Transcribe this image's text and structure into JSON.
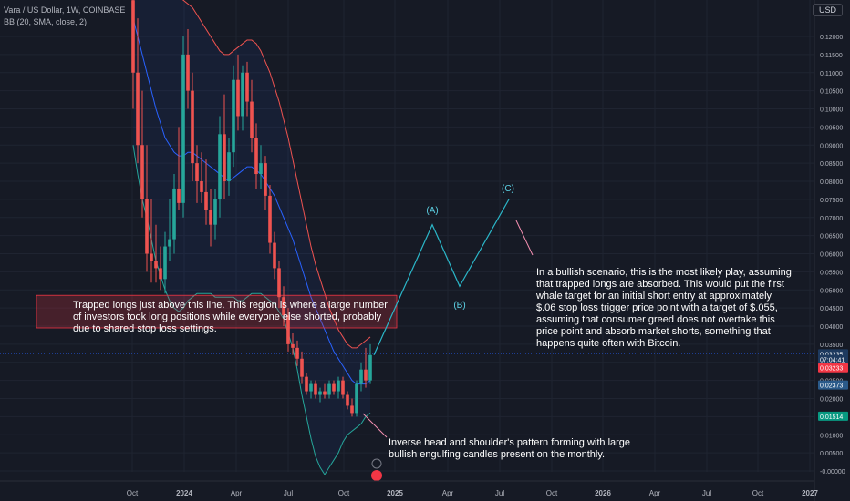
{
  "header": {
    "symbol_line": "Vara / US Dollar, 1W, COINBASE",
    "indicator_line": "BB (20, SMA, close, 2)",
    "currency": "USD"
  },
  "colors": {
    "bg": "#161a25",
    "up": "#26a69a",
    "down": "#ef5350",
    "upper_band": "#ef5350",
    "basis": "#2962ff",
    "lower_band": "#26a69a",
    "path": "#2bb7c9",
    "zone": "#f23645"
  },
  "price_badges": [
    {
      "label": "0.03235",
      "value": 0.03235,
      "color": "#1e3a5f"
    },
    {
      "label": "07:04:41",
      "value": 0.0308,
      "color": "#1e3a5f"
    },
    {
      "label": "0.03233",
      "value": 0.0285,
      "color": "#f23645"
    },
    {
      "label": "0.02373",
      "value": 0.02373,
      "color": "#2a5a8a"
    },
    {
      "label": "0.01514",
      "value": 0.01514,
      "color": "#089981"
    }
  ],
  "annotations": {
    "trapped_longs": "Trapped longs just above this line. This region is where a large number of investors took long positions while everyone else shorted, probably due to shared stop loss settings.",
    "bullish_scenario": "In a bullish scenario, this is the most likely play, assuming that trapped longs are absorbed. This would put the first whale target for an initial short entry at approximately $.06 stop loss trigger price point with a target of $.055, assuming that consumer greed does not overtake this price point and absorb market shorts, something that happens quite often with Bitcoin.",
    "inverse_hs": "Inverse head and shoulder's pattern forming with large bullish engulfing candles present on the monthly.",
    "wave_a": "(A)",
    "wave_b": "(B)",
    "wave_c": "(C)"
  },
  "chart_data": {
    "type": "candlestick",
    "title": "Vara / US Dollar, 1W, COINBASE",
    "indicator": "BB (20, SMA, close, 2)",
    "x_tick_labels": [
      "Oct",
      "2024",
      "Apr",
      "Jul",
      "Oct",
      "2025",
      "Apr",
      "Jul",
      "Oct",
      "2026",
      "Apr",
      "Jul",
      "Oct",
      "2027"
    ],
    "y_tick_labels": [
      "0.12000",
      "0.11500",
      "0.11000",
      "0.10500",
      "0.10000",
      "0.09500",
      "0.09000",
      "0.08500",
      "0.08000",
      "0.07500",
      "0.07000",
      "0.06500",
      "0.06000",
      "0.05500",
      "0.05000",
      "0.04500",
      "0.04000",
      "0.03500",
      "0.03000",
      "0.02500",
      "0.02000",
      "0.01500",
      "0.01000",
      "0.00500",
      "-0.00000"
    ],
    "ylim": [
      -0.001,
      0.13
    ],
    "candles": [
      {
        "o": 0.13,
        "h": 0.135,
        "l": 0.1,
        "c": 0.11
      },
      {
        "o": 0.11,
        "h": 0.125,
        "l": 0.085,
        "c": 0.09
      },
      {
        "o": 0.09,
        "h": 0.105,
        "l": 0.07,
        "c": 0.075
      },
      {
        "o": 0.075,
        "h": 0.09,
        "l": 0.055,
        "c": 0.06
      },
      {
        "o": 0.06,
        "h": 0.075,
        "l": 0.052,
        "c": 0.058
      },
      {
        "o": 0.058,
        "h": 0.068,
        "l": 0.052,
        "c": 0.056
      },
      {
        "o": 0.056,
        "h": 0.062,
        "l": 0.05,
        "c": 0.053
      },
      {
        "o": 0.053,
        "h": 0.066,
        "l": 0.049,
        "c": 0.062
      },
      {
        "o": 0.062,
        "h": 0.075,
        "l": 0.058,
        "c": 0.064
      },
      {
        "o": 0.064,
        "h": 0.082,
        "l": 0.06,
        "c": 0.078
      },
      {
        "o": 0.078,
        "h": 0.095,
        "l": 0.072,
        "c": 0.074
      },
      {
        "o": 0.074,
        "h": 0.12,
        "l": 0.07,
        "c": 0.115
      },
      {
        "o": 0.115,
        "h": 0.122,
        "l": 0.1,
        "c": 0.105
      },
      {
        "o": 0.105,
        "h": 0.11,
        "l": 0.08,
        "c": 0.085
      },
      {
        "o": 0.085,
        "h": 0.09,
        "l": 0.074,
        "c": 0.08
      },
      {
        "o": 0.08,
        "h": 0.088,
        "l": 0.074,
        "c": 0.077
      },
      {
        "o": 0.077,
        "h": 0.086,
        "l": 0.068,
        "c": 0.072
      },
      {
        "o": 0.072,
        "h": 0.078,
        "l": 0.062,
        "c": 0.068
      },
      {
        "o": 0.068,
        "h": 0.078,
        "l": 0.064,
        "c": 0.075
      },
      {
        "o": 0.075,
        "h": 0.098,
        "l": 0.07,
        "c": 0.093
      },
      {
        "o": 0.093,
        "h": 0.104,
        "l": 0.075,
        "c": 0.08
      },
      {
        "o": 0.08,
        "h": 0.092,
        "l": 0.076,
        "c": 0.088
      },
      {
        "o": 0.088,
        "h": 0.112,
        "l": 0.084,
        "c": 0.108
      },
      {
        "o": 0.108,
        "h": 0.115,
        "l": 0.094,
        "c": 0.098
      },
      {
        "o": 0.098,
        "h": 0.112,
        "l": 0.094,
        "c": 0.11
      },
      {
        "o": 0.11,
        "h": 0.113,
        "l": 0.098,
        "c": 0.102
      },
      {
        "o": 0.102,
        "h": 0.108,
        "l": 0.088,
        "c": 0.092
      },
      {
        "o": 0.092,
        "h": 0.096,
        "l": 0.078,
        "c": 0.082
      },
      {
        "o": 0.082,
        "h": 0.09,
        "l": 0.078,
        "c": 0.085
      },
      {
        "o": 0.085,
        "h": 0.087,
        "l": 0.072,
        "c": 0.076
      },
      {
        "o": 0.076,
        "h": 0.079,
        "l": 0.06,
        "c": 0.063
      },
      {
        "o": 0.063,
        "h": 0.066,
        "l": 0.053,
        "c": 0.056
      },
      {
        "o": 0.056,
        "h": 0.058,
        "l": 0.045,
        "c": 0.048
      },
      {
        "o": 0.048,
        "h": 0.051,
        "l": 0.04,
        "c": 0.043
      },
      {
        "o": 0.043,
        "h": 0.045,
        "l": 0.033,
        "c": 0.035
      },
      {
        "o": 0.035,
        "h": 0.038,
        "l": 0.032,
        "c": 0.034
      },
      {
        "o": 0.034,
        "h": 0.036,
        "l": 0.029,
        "c": 0.031
      },
      {
        "o": 0.031,
        "h": 0.033,
        "l": 0.024,
        "c": 0.026
      },
      {
        "o": 0.026,
        "h": 0.027,
        "l": 0.021,
        "c": 0.022
      },
      {
        "o": 0.022,
        "h": 0.025,
        "l": 0.02,
        "c": 0.024
      },
      {
        "o": 0.024,
        "h": 0.025,
        "l": 0.02,
        "c": 0.021
      },
      {
        "o": 0.021,
        "h": 0.023,
        "l": 0.019,
        "c": 0.022
      },
      {
        "o": 0.022,
        "h": 0.024,
        "l": 0.02,
        "c": 0.021
      },
      {
        "o": 0.021,
        "h": 0.025,
        "l": 0.02,
        "c": 0.024
      },
      {
        "o": 0.024,
        "h": 0.025,
        "l": 0.021,
        "c": 0.022
      },
      {
        "o": 0.022,
        "h": 0.026,
        "l": 0.02,
        "c": 0.025
      },
      {
        "o": 0.025,
        "h": 0.026,
        "l": 0.02,
        "c": 0.021
      },
      {
        "o": 0.021,
        "h": 0.022,
        "l": 0.017,
        "c": 0.018
      },
      {
        "o": 0.018,
        "h": 0.02,
        "l": 0.015,
        "c": 0.016
      },
      {
        "o": 0.016,
        "h": 0.025,
        "l": 0.015,
        "c": 0.024
      },
      {
        "o": 0.024,
        "h": 0.03,
        "l": 0.022,
        "c": 0.028
      },
      {
        "o": 0.028,
        "h": 0.034,
        "l": 0.023,
        "c": 0.025
      },
      {
        "o": 0.025,
        "h": 0.035,
        "l": 0.024,
        "c": 0.032
      }
    ],
    "bollinger": {
      "upper": [
        0.16,
        0.158,
        0.155,
        0.15,
        0.146,
        0.142,
        0.138,
        0.135,
        0.133,
        0.132,
        0.131,
        0.13,
        0.129,
        0.128,
        0.126,
        0.124,
        0.122,
        0.12,
        0.118,
        0.116,
        0.115,
        0.115,
        0.116,
        0.117,
        0.118,
        0.119,
        0.119,
        0.118,
        0.116,
        0.113,
        0.11,
        0.106,
        0.102,
        0.097,
        0.092,
        0.086,
        0.08,
        0.074,
        0.068,
        0.062,
        0.057,
        0.053,
        0.049,
        0.045,
        0.042,
        0.039,
        0.037,
        0.035,
        0.034,
        0.034,
        0.035,
        0.036,
        0.037
      ],
      "basis": [
        0.125,
        0.12,
        0.115,
        0.11,
        0.105,
        0.1,
        0.096,
        0.092,
        0.09,
        0.088,
        0.087,
        0.087,
        0.088,
        0.088,
        0.087,
        0.086,
        0.085,
        0.084,
        0.083,
        0.082,
        0.081,
        0.08,
        0.081,
        0.082,
        0.083,
        0.084,
        0.084,
        0.083,
        0.082,
        0.08,
        0.078,
        0.076,
        0.073,
        0.07,
        0.067,
        0.064,
        0.06,
        0.056,
        0.052,
        0.048,
        0.045,
        0.042,
        0.039,
        0.036,
        0.033,
        0.031,
        0.029,
        0.027,
        0.025,
        0.024,
        0.024,
        0.024,
        0.025
      ],
      "lower": [
        0.09,
        0.082,
        0.075,
        0.07,
        0.064,
        0.058,
        0.054,
        0.05,
        0.047,
        0.045,
        0.044,
        0.045,
        0.047,
        0.048,
        0.049,
        0.049,
        0.049,
        0.049,
        0.048,
        0.048,
        0.048,
        0.048,
        0.048,
        0.047,
        0.047,
        0.048,
        0.049,
        0.049,
        0.049,
        0.048,
        0.047,
        0.046,
        0.044,
        0.042,
        0.038,
        0.034,
        0.028,
        0.021,
        0.015,
        0.009,
        0.004,
        0.001,
        -0.001,
        0.001,
        0.003,
        0.005,
        0.008,
        0.01,
        0.011,
        0.012,
        0.013,
        0.015,
        0.016
      ]
    },
    "projection": [
      {
        "label": "start",
        "value": 0.032
      },
      {
        "label": "(A)",
        "value": 0.068
      },
      {
        "label": "(B)",
        "value": 0.051
      },
      {
        "label": "(C)",
        "value": 0.075
      }
    ],
    "trapped_zone": [
      0.0395,
      0.0485
    ]
  }
}
